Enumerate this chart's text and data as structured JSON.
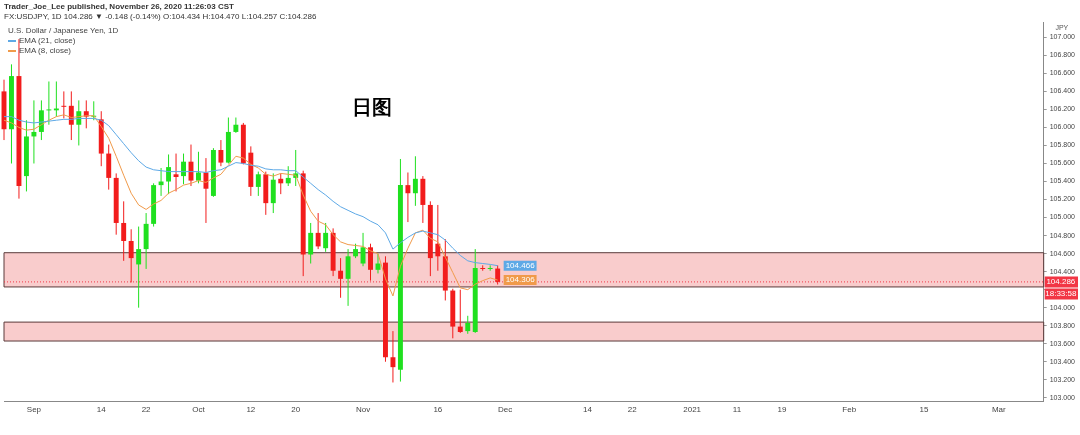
{
  "chart_data": {
    "type": "candlestick",
    "title": "日图",
    "subtitle": "Trader_Joe_Lee published, November 26, 2020 11:26:03 CST",
    "ylabel": "JPY",
    "legend_title": "U.S. Dollar / Japanese Yen, 1D",
    "categories": [
      null,
      null,
      null,
      null,
      "Sep",
      null,
      null,
      null,
      null,
      null,
      null,
      null,
      null,
      "14",
      null,
      null,
      null,
      null,
      null,
      "22",
      null,
      null,
      null,
      null,
      null,
      null,
      "Oct",
      null,
      null,
      null,
      null,
      null,
      null,
      "12",
      null,
      null,
      null,
      null,
      null,
      "20",
      null,
      null,
      null,
      null,
      null,
      null,
      null,
      null,
      "Nov",
      null,
      null,
      null,
      null,
      null,
      null,
      null,
      null,
      null,
      "16",
      null,
      null,
      null,
      null,
      null,
      null,
      null,
      null,
      "Dec",
      null,
      null,
      null,
      null,
      null,
      null,
      null,
      null,
      null,
      null,
      "14",
      null,
      null,
      null,
      null,
      null,
      "22",
      null,
      null,
      null,
      null,
      null,
      null,
      null,
      "2021",
      null,
      null,
      null,
      null,
      null,
      "11",
      null,
      null,
      null,
      null,
      null,
      "19",
      null,
      null,
      null,
      null,
      null,
      null,
      null,
      null,
      "Feb",
      null,
      null,
      null,
      null,
      null,
      null,
      null,
      null,
      null,
      "15",
      null,
      null,
      null,
      null,
      null,
      null,
      null,
      null,
      null,
      "Mar",
      null,
      null,
      null,
      null,
      null,
      null
    ],
    "ohlc": [
      [
        106.4,
        106.53,
        105.86,
        105.98
      ],
      [
        105.98,
        106.7,
        105.6,
        106.57
      ],
      [
        106.57,
        106.98,
        105.21,
        105.35
      ],
      [
        105.46,
        106.08,
        105.29,
        105.9
      ],
      [
        105.9,
        106.3,
        105.6,
        105.95
      ],
      [
        105.95,
        106.3,
        105.86,
        106.19
      ],
      [
        106.19,
        106.51,
        106.03,
        106.2
      ],
      [
        106.19,
        106.51,
        106.12,
        106.21
      ],
      [
        106.24,
        106.4,
        106.1,
        106.23
      ],
      [
        106.24,
        106.4,
        105.86,
        106.03
      ],
      [
        106.03,
        106.3,
        105.8,
        106.18
      ],
      [
        106.18,
        106.3,
        105.99,
        106.12
      ],
      [
        106.12,
        106.29,
        106.08,
        106.13
      ],
      [
        106.09,
        106.18,
        105.57,
        105.71
      ],
      [
        105.71,
        105.81,
        105.31,
        105.44
      ],
      [
        105.44,
        105.49,
        104.81,
        104.94
      ],
      [
        104.94,
        105.18,
        104.52,
        104.74
      ],
      [
        104.74,
        104.87,
        104.28,
        104.55
      ],
      [
        104.48,
        104.9,
        104.0,
        104.65
      ],
      [
        104.65,
        105.05,
        104.43,
        104.93
      ],
      [
        104.93,
        105.38,
        104.9,
        105.36
      ],
      [
        105.36,
        105.55,
        105.24,
        105.4
      ],
      [
        105.4,
        105.7,
        105.26,
        105.56
      ],
      [
        105.48,
        105.71,
        105.29,
        105.45
      ],
      [
        105.46,
        105.71,
        105.37,
        105.62
      ],
      [
        105.62,
        105.81,
        105.35,
        105.41
      ],
      [
        105.41,
        105.73,
        105.38,
        105.5
      ],
      [
        105.5,
        105.66,
        104.94,
        105.32
      ],
      [
        105.24,
        105.77,
        105.23,
        105.75
      ],
      [
        105.75,
        105.86,
        105.57,
        105.61
      ],
      [
        105.61,
        106.11,
        105.6,
        105.95
      ],
      [
        105.95,
        106.11,
        105.94,
        106.03
      ],
      [
        106.03,
        106.05,
        105.59,
        105.6
      ],
      [
        105.72,
        105.79,
        105.24,
        105.34
      ],
      [
        105.34,
        105.51,
        105.24,
        105.48
      ],
      [
        105.48,
        105.51,
        105.03,
        105.16
      ],
      [
        105.16,
        105.49,
        105.05,
        105.42
      ],
      [
        105.43,
        105.49,
        105.26,
        105.38
      ],
      [
        105.38,
        105.57,
        105.35,
        105.44
      ],
      [
        105.44,
        105.75,
        105.35,
        105.49
      ],
      [
        105.49,
        105.52,
        104.35,
        104.59
      ],
      [
        104.59,
        104.94,
        104.49,
        104.83
      ],
      [
        104.83,
        105.05,
        104.65,
        104.68
      ],
      [
        104.66,
        104.94,
        104.62,
        104.83
      ],
      [
        104.83,
        104.88,
        104.35,
        104.41
      ],
      [
        104.41,
        104.55,
        104.11,
        104.32
      ],
      [
        104.32,
        104.65,
        104.02,
        104.57
      ],
      [
        104.57,
        104.71,
        104.55,
        104.65
      ],
      [
        104.49,
        104.83,
        104.46,
        104.67
      ],
      [
        104.67,
        104.71,
        104.3,
        104.42
      ],
      [
        104.42,
        104.6,
        104.38,
        104.49
      ],
      [
        104.5,
        104.57,
        103.4,
        103.45
      ],
      [
        103.45,
        103.74,
        103.17,
        103.34
      ],
      [
        103.31,
        105.65,
        103.18,
        105.36
      ],
      [
        105.36,
        105.5,
        104.95,
        105.27
      ],
      [
        105.27,
        105.68,
        105.13,
        105.43
      ],
      [
        105.43,
        105.46,
        104.94,
        105.14
      ],
      [
        105.14,
        105.18,
        104.35,
        104.55
      ],
      [
        104.71,
        105.14,
        104.41,
        104.57
      ],
      [
        104.57,
        104.76,
        104.08,
        104.19
      ],
      [
        104.19,
        104.21,
        103.66,
        103.79
      ],
      [
        103.79,
        104.2,
        103.72,
        103.73
      ],
      [
        103.74,
        103.91,
        103.71,
        103.83
      ],
      [
        103.73,
        104.65,
        103.72,
        104.44
      ],
      [
        104.44,
        104.47,
        104.41,
        104.43
      ],
      [
        104.43,
        104.47,
        104.41,
        104.44
      ],
      [
        104.434,
        104.47,
        104.257,
        104.286
      ],
      null,
      null,
      null,
      null,
      null,
      null,
      null,
      null,
      null,
      null,
      null,
      null,
      null,
      null,
      null,
      null,
      null,
      null,
      null,
      null,
      null,
      null,
      null,
      null,
      null,
      null,
      null,
      null,
      null,
      null,
      null,
      null,
      null,
      null,
      null,
      null,
      null,
      null,
      null,
      null,
      null,
      null,
      null,
      null,
      null,
      null,
      null,
      null,
      null,
      null,
      null,
      null,
      null,
      null,
      null,
      null,
      null,
      null,
      null,
      null,
      null,
      null,
      null,
      null,
      null,
      null,
      null,
      null,
      null,
      null,
      null,
      null,
      null
    ],
    "colors": [
      "#f21c1c",
      "#1fe01f",
      "#f21c1c",
      "#1fe01f",
      "#1fe01f",
      "#1fe01f",
      "#1fe01f",
      "#1fe01f",
      "#f21c1c",
      "#f21c1c",
      "#1fe01f",
      "#f21c1c",
      "#1fe01f",
      "#f21c1c",
      "#f21c1c",
      "#f21c1c",
      "#f21c1c",
      "#f21c1c",
      "#1fe01f",
      "#1fe01f",
      "#1fe01f",
      "#1fe01f",
      "#1fe01f",
      "#f21c1c",
      "#1fe01f",
      "#f21c1c",
      "#1fe01f",
      "#f21c1c",
      "#1fe01f",
      "#f21c1c",
      "#1fe01f",
      "#1fe01f",
      "#f21c1c",
      "#f21c1c",
      "#1fe01f",
      "#f21c1c",
      "#1fe01f",
      "#f21c1c",
      "#1fe01f",
      "#1fe01f",
      "#f21c1c",
      "#1fe01f",
      "#f21c1c",
      "#1fe01f",
      "#f21c1c",
      "#f21c1c",
      "#1fe01f",
      "#1fe01f",
      "#1fe01f",
      "#f21c1c",
      "#1fe01f",
      "#f21c1c",
      "#f21c1c",
      "#1fe01f",
      "#f21c1c",
      "#1fe01f",
      "#f21c1c",
      "#f21c1c",
      "#f21c1c",
      "#f21c1c",
      "#f21c1c",
      "#f21c1c",
      "#1fe01f",
      "#1fe01f",
      "#f21c1c",
      "#1fe01f",
      "#f21c1c",
      null,
      null,
      null,
      null,
      null,
      null,
      null,
      null,
      null,
      null,
      null,
      null,
      null,
      null,
      null,
      null,
      null,
      null,
      null,
      null,
      null,
      null,
      null,
      null,
      null,
      null,
      null,
      null,
      null,
      null,
      null,
      null,
      null,
      null,
      null,
      null,
      null,
      null,
      null,
      null,
      null,
      null,
      null,
      null,
      null,
      null,
      null,
      null,
      null,
      null,
      null,
      null,
      null,
      null,
      null,
      null,
      null,
      null,
      null,
      null,
      null,
      null,
      null,
      null,
      null,
      null,
      null,
      null,
      null,
      null,
      null,
      null,
      null
    ],
    "series": [
      {
        "type": "line",
        "name": "EMA (21, close)",
        "color": "#5ea9e6",
        "values": [
          106.12,
          106.12,
          106.08,
          106.06,
          106.05,
          106.06,
          106.07,
          106.08,
          106.09,
          106.09,
          106.1,
          106.1,
          106.1,
          106.08,
          106.02,
          105.92,
          105.82,
          105.72,
          105.63,
          105.56,
          105.53,
          105.52,
          105.51,
          105.51,
          105.51,
          105.51,
          105.51,
          105.5,
          105.52,
          105.53,
          105.57,
          105.61,
          105.6,
          105.58,
          105.57,
          105.54,
          105.53,
          105.53,
          105.52,
          105.52,
          105.45,
          105.38,
          105.31,
          105.25,
          105.18,
          105.12,
          105.08,
          105.04,
          105.01,
          104.96,
          104.92,
          104.83,
          104.65,
          104.72,
          104.78,
          104.83,
          104.85,
          104.83,
          104.81,
          104.75,
          104.66,
          104.58,
          104.52,
          104.5,
          104.49,
          104.48,
          104.466,
          null,
          null,
          null,
          null,
          null,
          null,
          null,
          null,
          null,
          null,
          null,
          null,
          null,
          null,
          null,
          null,
          null,
          null,
          null,
          null,
          null,
          null,
          null,
          null,
          null,
          null,
          null,
          null,
          null,
          null,
          null,
          null,
          null,
          null,
          null,
          null,
          null,
          null,
          null,
          null,
          null,
          null,
          null,
          null,
          null,
          null,
          null,
          null,
          null,
          null,
          null,
          null,
          null,
          null,
          null,
          null,
          null,
          null,
          null,
          null,
          null,
          null,
          null,
          null,
          null,
          null,
          null,
          null,
          null,
          null,
          null,
          null,
          null
        ],
        "value_labels": [
          null,
          null,
          null,
          null,
          null,
          null,
          null,
          null,
          null,
          null,
          null,
          null,
          null,
          null,
          null,
          null,
          null,
          null,
          null,
          null,
          null,
          null,
          null,
          null,
          null,
          null,
          null,
          null,
          null,
          null,
          null,
          null,
          null,
          null,
          null,
          null,
          null,
          null,
          null,
          null,
          null,
          null,
          null,
          null,
          null,
          null,
          null,
          null,
          null,
          null,
          null,
          null,
          null,
          null,
          null,
          null,
          null,
          null,
          null,
          null,
          null,
          null,
          null,
          null,
          null,
          null,
          "104.466",
          null,
          null,
          null,
          null,
          null,
          null,
          null,
          null,
          null,
          null,
          null,
          null,
          null,
          null,
          null,
          null,
          null,
          null,
          null,
          null,
          null,
          null,
          null,
          null,
          null,
          null,
          null,
          null,
          null,
          null,
          null,
          null,
          null,
          null,
          null,
          null,
          null,
          null,
          null,
          null,
          null,
          null,
          null,
          null,
          null,
          null,
          null,
          null,
          null,
          null,
          null,
          null,
          null,
          null,
          null,
          null,
          null,
          null,
          null,
          null,
          null,
          null,
          null,
          null,
          null,
          null,
          null,
          null,
          null,
          null,
          null,
          null,
          null
        ]
      },
      {
        "type": "line",
        "name": "EMA (8, close)",
        "color": "#f09a4a",
        "values": [
          106.08,
          106.05,
          106.0,
          105.97,
          105.98,
          106.03,
          106.08,
          106.12,
          106.14,
          106.11,
          106.12,
          106.13,
          106.13,
          106.01,
          105.88,
          105.68,
          105.47,
          105.27,
          105.14,
          105.09,
          105.15,
          105.19,
          105.27,
          105.31,
          105.36,
          105.38,
          105.41,
          105.39,
          105.44,
          105.48,
          105.58,
          105.68,
          105.66,
          105.59,
          105.55,
          105.48,
          105.46,
          105.49,
          105.48,
          105.47,
          105.25,
          105.07,
          104.96,
          104.92,
          104.81,
          104.73,
          104.7,
          104.69,
          104.68,
          104.63,
          104.6,
          104.32,
          104.13,
          104.46,
          104.66,
          104.83,
          104.86,
          104.77,
          104.73,
          104.56,
          104.39,
          104.22,
          104.2,
          104.26,
          104.3,
          104.33,
          104.306,
          null,
          null,
          null,
          null,
          null,
          null,
          null,
          null,
          null,
          null,
          null,
          null,
          null,
          null,
          null,
          null,
          null,
          null,
          null,
          null,
          null,
          null,
          null,
          null,
          null,
          null,
          null,
          null,
          null,
          null,
          null,
          null,
          null,
          null,
          null,
          null,
          null,
          null,
          null,
          null,
          null,
          null,
          null,
          null,
          null,
          null,
          null,
          null,
          null,
          null,
          null,
          null,
          null,
          null,
          null,
          null,
          null,
          null,
          null,
          null,
          null,
          null,
          null,
          null,
          null,
          null,
          null,
          null,
          null,
          null,
          null,
          null,
          null
        ],
        "value_labels": [
          null,
          null,
          null,
          null,
          null,
          null,
          null,
          null,
          null,
          null,
          null,
          null,
          null,
          null,
          null,
          null,
          null,
          null,
          null,
          null,
          null,
          null,
          null,
          null,
          null,
          null,
          null,
          null,
          null,
          null,
          null,
          null,
          null,
          null,
          null,
          null,
          null,
          null,
          null,
          null,
          null,
          null,
          null,
          null,
          null,
          null,
          null,
          null,
          null,
          null,
          null,
          null,
          null,
          null,
          null,
          null,
          null,
          null,
          null,
          null,
          null,
          null,
          null,
          null,
          null,
          null,
          "104.306",
          null,
          null,
          null,
          null,
          null,
          null,
          null,
          null,
          null,
          null,
          null,
          null,
          null,
          null,
          null,
          null,
          null,
          null,
          null,
          null,
          null,
          null,
          null,
          null,
          null,
          null,
          null,
          null,
          null,
          null,
          null,
          null,
          null,
          null,
          null,
          null,
          null,
          null,
          null,
          null,
          null,
          null,
          null,
          null,
          null,
          null,
          null,
          null,
          null,
          null,
          null,
          null,
          null,
          null,
          null,
          null,
          null,
          null,
          null,
          null,
          null,
          null,
          null,
          null,
          null,
          null,
          null,
          null,
          null,
          null,
          null,
          null,
          null
        ]
      }
    ],
    "ylim": [
      102.96,
      107.17
    ],
    "yticks": [
      {
        "value": 103,
        "label": "103.000"
      },
      {
        "value": 103.2,
        "label": "103.200"
      },
      {
        "value": 103.4,
        "label": "103.400"
      },
      {
        "value": 103.6,
        "label": "103.600"
      },
      {
        "value": 103.8,
        "label": "103.800"
      },
      {
        "value": 104,
        "label": "104.000"
      },
      {
        "value": 104.2,
        "label": null
      },
      {
        "value": 104.4,
        "label": "104.400"
      },
      {
        "value": 104.6,
        "label": "104.600"
      },
      {
        "value": 104.8,
        "label": "104.800"
      },
      {
        "value": 105,
        "label": "105.000"
      },
      {
        "value": 105.2,
        "label": "105.200"
      },
      {
        "value": 105.4,
        "label": "105.400"
      },
      {
        "value": 105.6,
        "label": "105.600"
      },
      {
        "value": 105.8,
        "label": "105.800"
      },
      {
        "value": 106,
        "label": "106.000"
      },
      {
        "value": 106.2,
        "label": "106.200"
      },
      {
        "value": 106.4,
        "label": "106.400"
      },
      {
        "value": 106.6,
        "label": "106.600"
      },
      {
        "value": 106.8,
        "label": "106.800"
      },
      {
        "value": 107,
        "label": "107.000"
      }
    ],
    "ref_lines": [
      {
        "axis": "y",
        "value": 104.286,
        "label": "104.286",
        "color": "#f23645",
        "line_style": "dotted"
      }
    ],
    "bands": [
      {
        "axis": "y",
        "from": 103.63,
        "to": 103.84,
        "color": "#f4a3a3"
      },
      {
        "axis": "y",
        "from": 104.23,
        "to": 104.61,
        "color": "#f4a3a3"
      }
    ],
    "annotations": [
      "FX:USDJPY, 1D 104.286 ▼ -0.148 (-0.14%) O:104.434 H:104.470 L:104.257 C:104.286",
      "18:33:58"
    ],
    "legend": "top left",
    "grid": false,
    "marker": "none",
    "line_style": "solid"
  }
}
